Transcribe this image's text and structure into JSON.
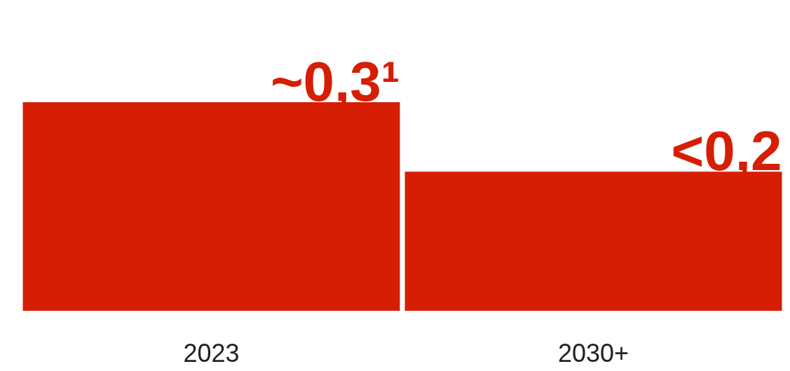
{
  "chart_data": {
    "type": "bar",
    "categories": [
      "2023",
      "2030+"
    ],
    "values": [
      0.3,
      0.2
    ],
    "value_labels": [
      "~0,3¹",
      "<0,2"
    ],
    "color": "#d61e05"
  }
}
